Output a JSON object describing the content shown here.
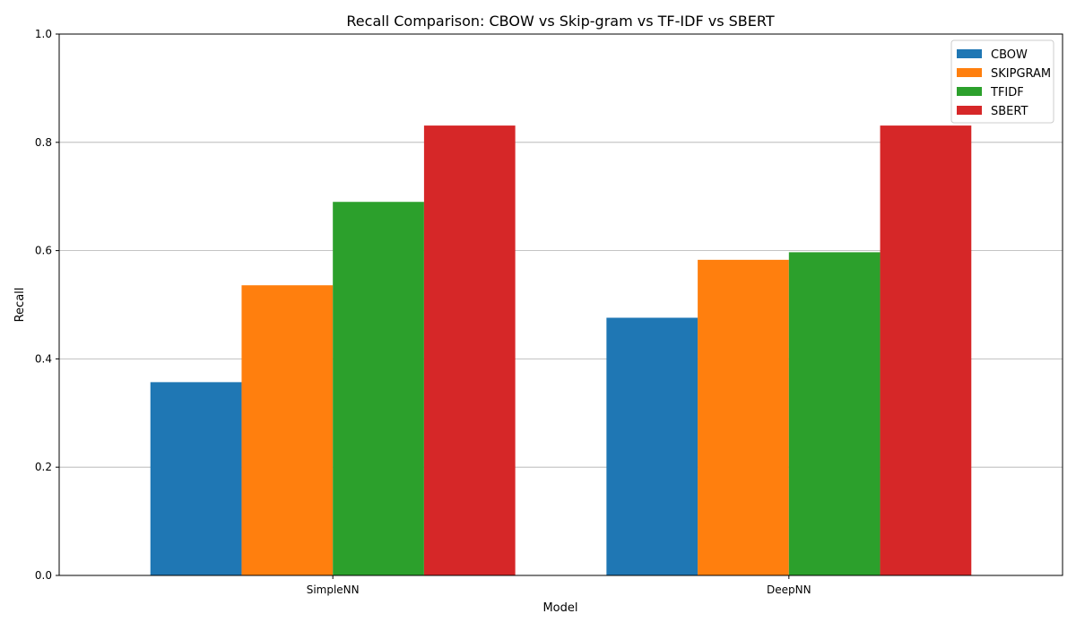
{
  "chart_data": {
    "type": "bar",
    "title": "Recall Comparison: CBOW vs Skip-gram vs TF-IDF vs SBERT",
    "xlabel": "Model",
    "ylabel": "Recall",
    "categories": [
      "SimpleNN",
      "DeepNN"
    ],
    "series": [
      {
        "name": "CBOW",
        "color": "#1f77b4",
        "values": [
          0.357,
          0.476
        ]
      },
      {
        "name": "SKIPGRAM",
        "color": "#ff7f0e",
        "values": [
          0.536,
          0.583
        ]
      },
      {
        "name": "TFIDF",
        "color": "#2ca02c",
        "values": [
          0.69,
          0.597
        ]
      },
      {
        "name": "SBERT",
        "color": "#d62728",
        "values": [
          0.831,
          0.831
        ]
      }
    ],
    "ylim": [
      0,
      1.0
    ],
    "yticks": [
      "0.0",
      "0.2",
      "0.4",
      "0.6",
      "0.8",
      "1.0"
    ],
    "grid": "y-axis",
    "legend_position": "top-right"
  }
}
